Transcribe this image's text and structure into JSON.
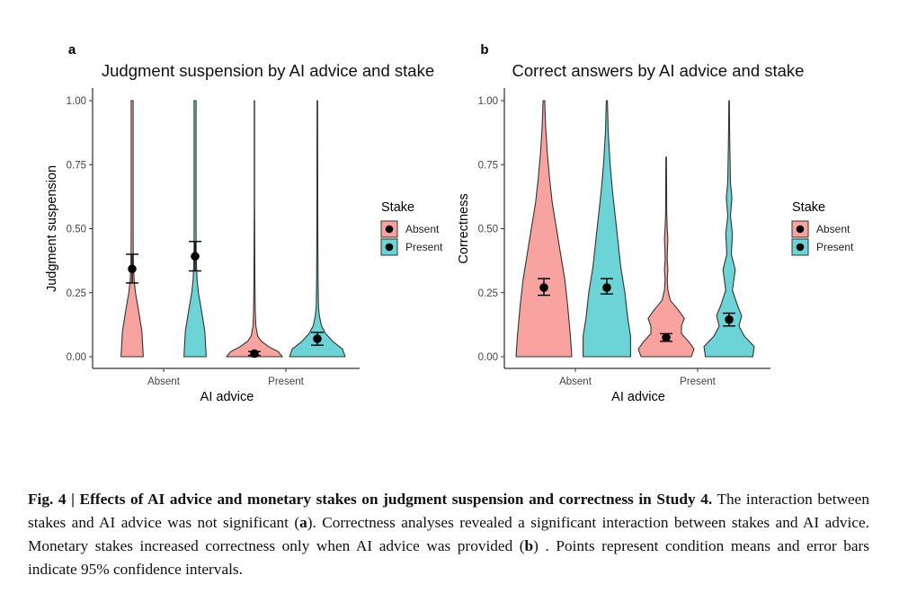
{
  "colors": {
    "absent": "#F8A3A0",
    "present": "#6CD3D6",
    "outline": "#333333",
    "point": "#000000"
  },
  "chart_data": [
    {
      "panel_label": "a",
      "type": "violin",
      "title": "Judgment suspension by AI advice and stake",
      "xlabel": "AI advice",
      "ylabel": "Judgment suspension",
      "categories": [
        "Absent",
        "Present"
      ],
      "ylim": [
        0,
        1
      ],
      "yticks": [
        "0.00",
        "0.25",
        "0.50",
        "0.75",
        "1.00"
      ],
      "grid": false,
      "legend": {
        "title": "Stake",
        "entries": [
          "Absent",
          "Present"
        ],
        "position": "right"
      },
      "series": [
        {
          "name": "Absent",
          "color": "absent",
          "points": [
            {
              "category": "Absent",
              "mean": 0.343,
              "ci_low": 0.288,
              "ci_high": 0.4,
              "density": [
                [
                  0.0,
                  0.4
                ],
                [
                  0.1,
                  0.35
                ],
                [
                  0.2,
                  0.2
                ],
                [
                  0.25,
                  0.12
                ],
                [
                  0.3,
                  0.07
                ],
                [
                  0.35,
                  0.05
                ],
                [
                  0.4,
                  0.04
                ],
                [
                  0.5,
                  0.035
                ],
                [
                  0.75,
                  0.035
                ],
                [
                  0.97,
                  0.035
                ],
                [
                  1.0,
                  0.04
                ]
              ]
            },
            {
              "category": "Present",
              "mean": 0.012,
              "ci_low": 0.005,
              "ci_high": 0.02,
              "density": [
                [
                  0.0,
                  1.0
                ],
                [
                  0.02,
                  0.85
                ],
                [
                  0.04,
                  0.5
                ],
                [
                  0.06,
                  0.25
                ],
                [
                  0.08,
                  0.12
                ],
                [
                  0.12,
                  0.05
                ],
                [
                  0.18,
                  0.03
                ],
                [
                  0.3,
                  0.015
                ],
                [
                  0.6,
                  0.008
                ],
                [
                  1.0,
                  0.005
                ]
              ]
            }
          ]
        },
        {
          "name": "Present",
          "color": "present",
          "points": [
            {
              "category": "Absent",
              "mean": 0.392,
              "ci_low": 0.335,
              "ci_high": 0.45,
              "density": [
                [
                  0.0,
                  0.4
                ],
                [
                  0.1,
                  0.35
                ],
                [
                  0.2,
                  0.2
                ],
                [
                  0.25,
                  0.12
                ],
                [
                  0.3,
                  0.07
                ],
                [
                  0.35,
                  0.05
                ],
                [
                  0.4,
                  0.04
                ],
                [
                  0.5,
                  0.035
                ],
                [
                  0.75,
                  0.035
                ],
                [
                  0.97,
                  0.035
                ],
                [
                  1.0,
                  0.04
                ]
              ]
            },
            {
              "category": "Present",
              "mean": 0.07,
              "ci_low": 0.045,
              "ci_high": 0.095,
              "density": [
                [
                  0.0,
                  1.0
                ],
                [
                  0.03,
                  0.9
                ],
                [
                  0.06,
                  0.55
                ],
                [
                  0.09,
                  0.3
                ],
                [
                  0.12,
                  0.15
                ],
                [
                  0.16,
                  0.07
                ],
                [
                  0.2,
                  0.04
                ],
                [
                  0.3,
                  0.025
                ],
                [
                  0.5,
                  0.015
                ],
                [
                  0.75,
                  0.012
                ],
                [
                  1.0,
                  0.01
                ]
              ]
            }
          ]
        }
      ]
    },
    {
      "panel_label": "b",
      "type": "violin",
      "title": "Correct answers by AI advice and stake",
      "xlabel": "AI advice",
      "ylabel": "Correctness",
      "categories": [
        "Absent",
        "Present"
      ],
      "ylim": [
        0,
        1
      ],
      "yticks": [
        "0.00",
        "0.25",
        "0.50",
        "0.75",
        "1.00"
      ],
      "grid": false,
      "legend": {
        "title": "Stake",
        "entries": [
          "Absent",
          "Present"
        ],
        "position": "right"
      },
      "series": [
        {
          "name": "Absent",
          "color": "absent",
          "points": [
            {
              "category": "Absent",
              "mean": 0.27,
              "ci_low": 0.24,
              "ci_high": 0.305,
              "density": [
                [
                  0.0,
                  1.0
                ],
                [
                  0.08,
                  0.95
                ],
                [
                  0.2,
                  0.85
                ],
                [
                  0.3,
                  0.75
                ],
                [
                  0.4,
                  0.6
                ],
                [
                  0.5,
                  0.45
                ],
                [
                  0.6,
                  0.3
                ],
                [
                  0.7,
                  0.2
                ],
                [
                  0.8,
                  0.12
                ],
                [
                  0.9,
                  0.06
                ],
                [
                  1.0,
                  0.03
                ]
              ]
            },
            {
              "category": "Present",
              "mean": 0.075,
              "ci_low": 0.06,
              "ci_high": 0.09,
              "density": [
                [
                  0.0,
                  0.9
                ],
                [
                  0.03,
                  1.0
                ],
                [
                  0.06,
                  0.8
                ],
                [
                  0.09,
                  0.55
                ],
                [
                  0.12,
                  0.55
                ],
                [
                  0.15,
                  0.65
                ],
                [
                  0.18,
                  0.45
                ],
                [
                  0.22,
                  0.15
                ],
                [
                  0.26,
                  0.06
                ],
                [
                  0.3,
                  0.04
                ],
                [
                  0.34,
                  0.06
                ],
                [
                  0.38,
                  0.035
                ],
                [
                  0.42,
                  0.045
                ],
                [
                  0.46,
                  0.06
                ],
                [
                  0.5,
                  0.04
                ],
                [
                  0.56,
                  0.02
                ],
                [
                  0.65,
                  0.015
                ],
                [
                  0.78,
                  0.01
                ]
              ]
            }
          ]
        },
        {
          "name": "Present",
          "color": "present",
          "points": [
            {
              "category": "Absent",
              "mean": 0.27,
              "ci_low": 0.245,
              "ci_high": 0.305,
              "density": [
                [
                  0.0,
                  0.85
                ],
                [
                  0.08,
                  0.85
                ],
                [
                  0.15,
                  0.75
                ],
                [
                  0.25,
                  0.65
                ],
                [
                  0.35,
                  0.5
                ],
                [
                  0.45,
                  0.4
                ],
                [
                  0.55,
                  0.3
                ],
                [
                  0.65,
                  0.2
                ],
                [
                  0.75,
                  0.12
                ],
                [
                  0.88,
                  0.05
                ],
                [
                  1.0,
                  0.02
                ]
              ]
            },
            {
              "category": "Present",
              "mean": 0.145,
              "ci_low": 0.12,
              "ci_high": 0.17,
              "density": [
                [
                  0.0,
                  0.85
                ],
                [
                  0.04,
                  0.9
                ],
                [
                  0.08,
                  0.55
                ],
                [
                  0.12,
                  0.35
                ],
                [
                  0.16,
                  0.45
                ],
                [
                  0.2,
                  0.3
                ],
                [
                  0.26,
                  0.12
                ],
                [
                  0.34,
                  0.22
                ],
                [
                  0.4,
                  0.08
                ],
                [
                  0.48,
                  0.12
                ],
                [
                  0.55,
                  0.05
                ],
                [
                  0.62,
                  0.1
                ],
                [
                  0.68,
                  0.05
                ],
                [
                  0.75,
                  0.04
                ],
                [
                  0.82,
                  0.025
                ],
                [
                  0.9,
                  0.015
                ],
                [
                  1.0,
                  0.01
                ]
              ]
            }
          ]
        }
      ]
    }
  ],
  "caption": {
    "figure_label": "Fig. 4 | Effects of AI advice and monetary stakes on judgment suspension and correctness in Study 4.",
    "text_1": " The interaction between stakes and AI advice was not significant (",
    "ref_a": "a",
    "text_2": "). Correctness analyses revealed a significant interaction between stakes and AI advice. Monetary stakes increased correctness only when AI advice was provided (",
    "ref_b": "b",
    "text_3": ") . Points represent condition means and error bars indicate 95% confidence intervals."
  }
}
